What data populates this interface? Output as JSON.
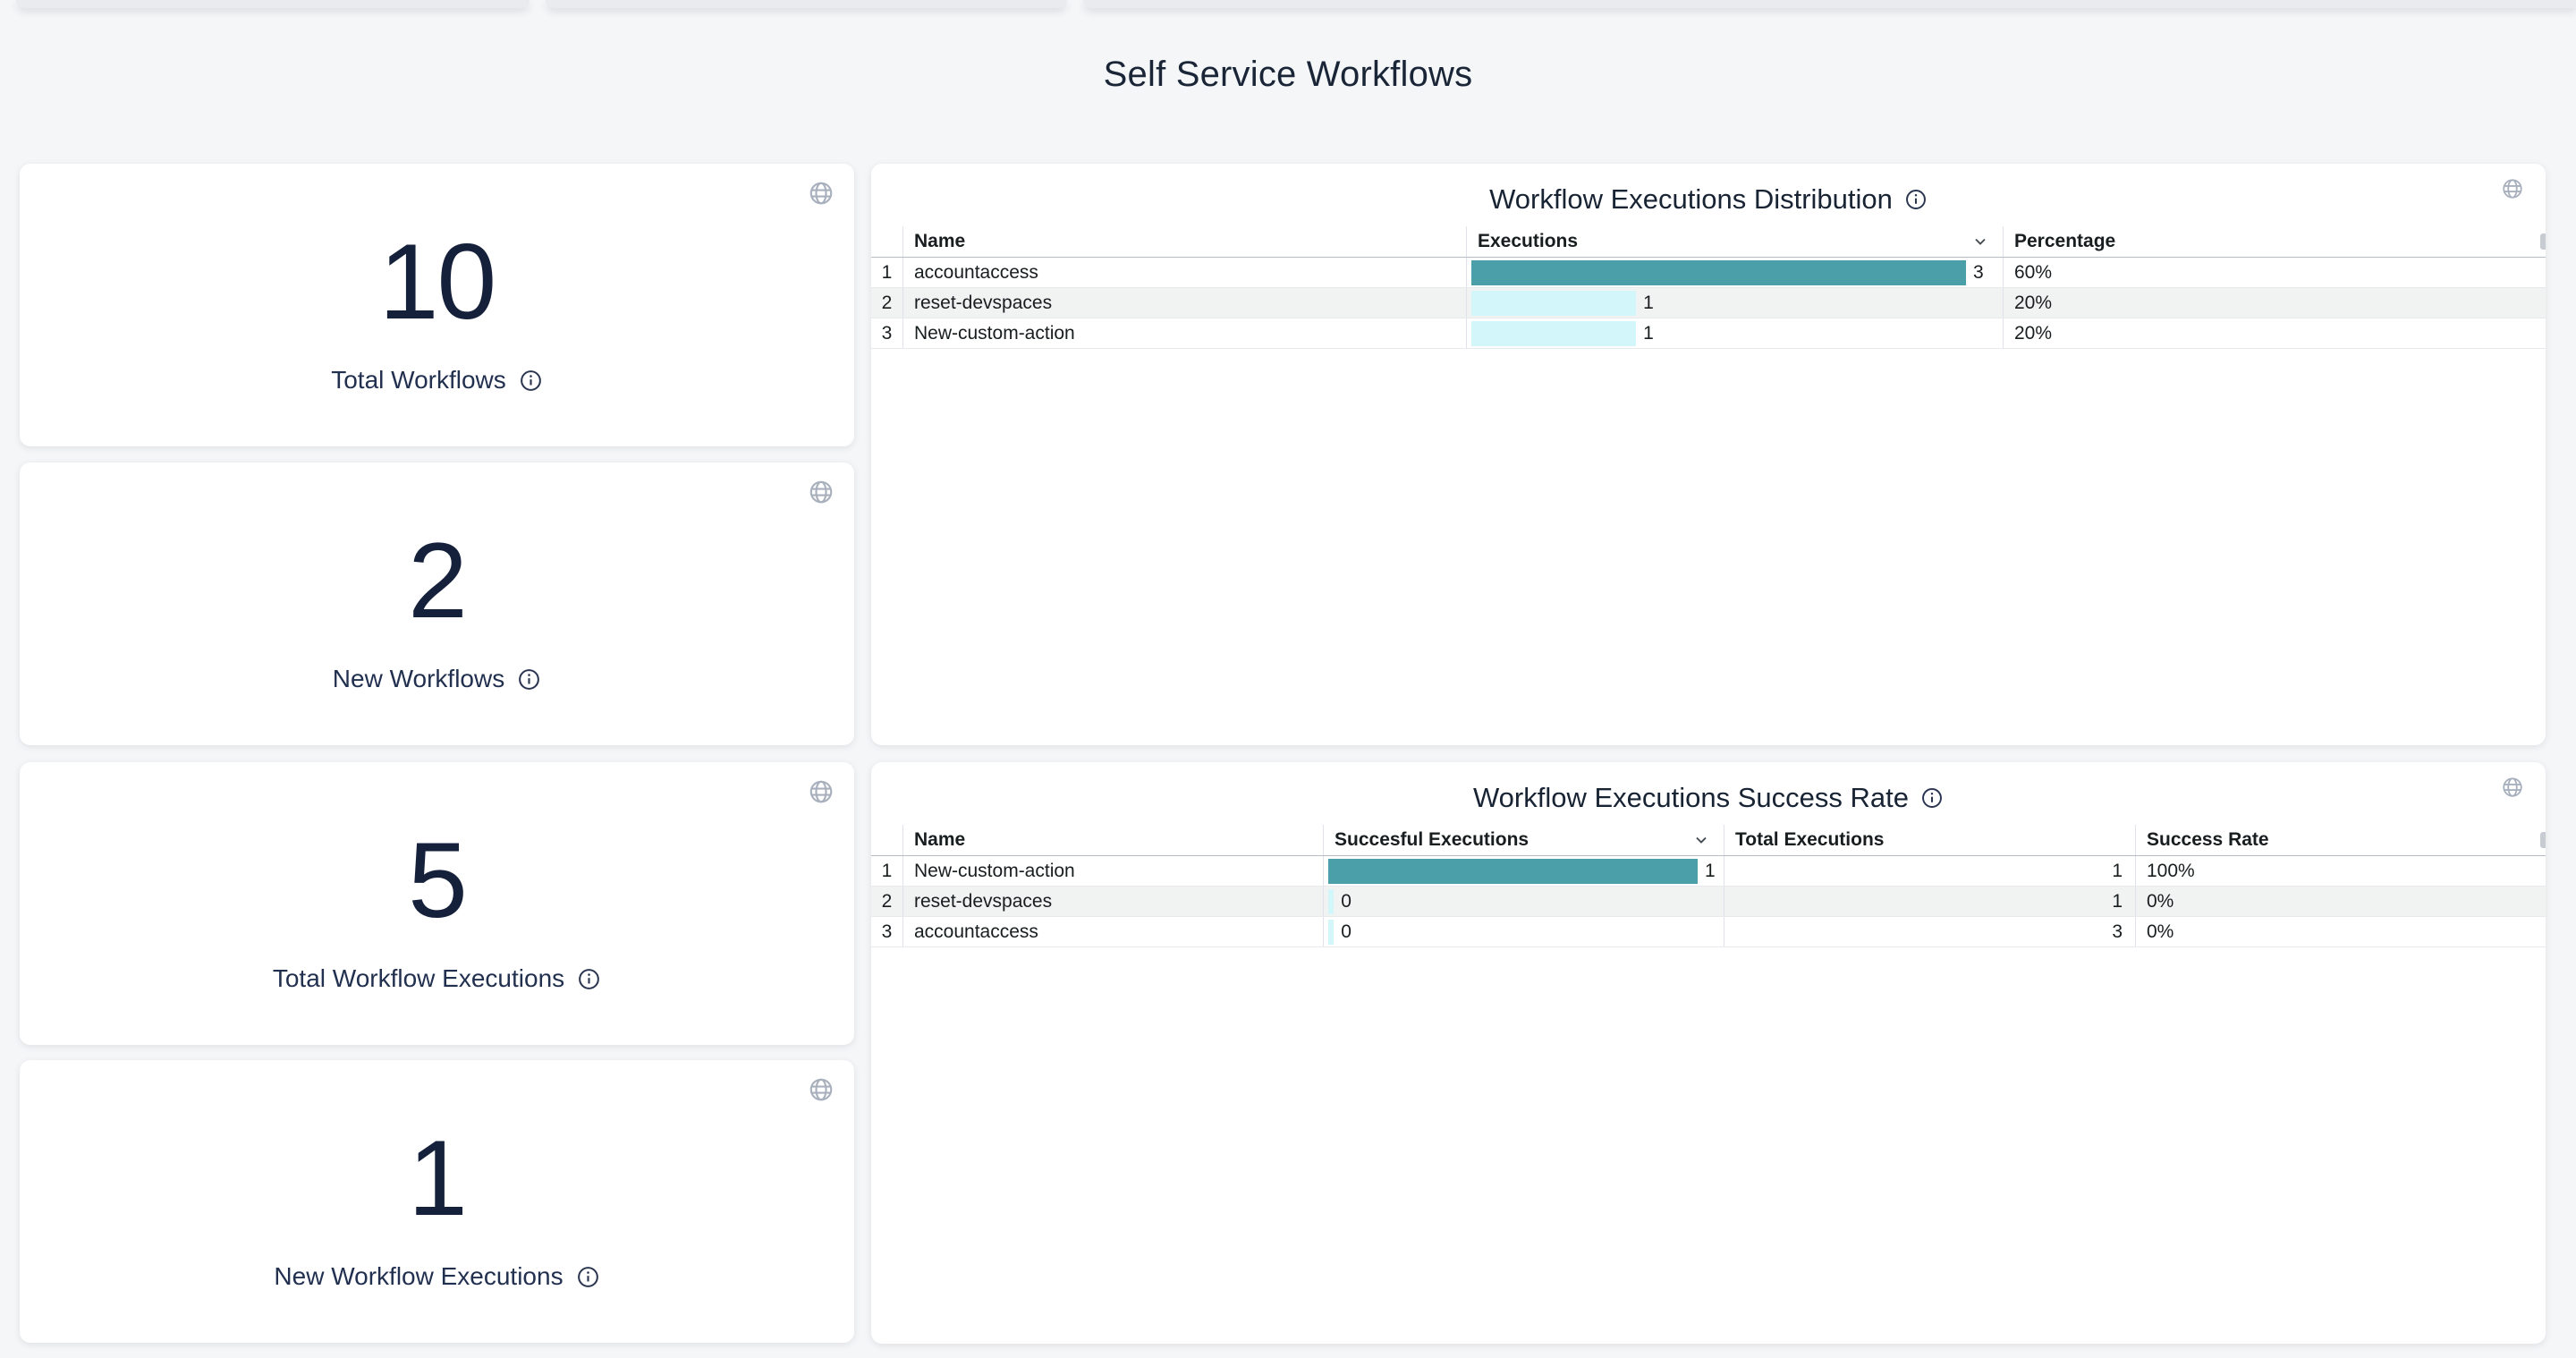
{
  "page": {
    "title": "Self Service Workflows"
  },
  "colors": {
    "bar_high": "#4a9fa8",
    "bar_low": "#d3f6fb",
    "page_background": "#f5f6f8",
    "title_text": "#1a2637",
    "globe_icon": "#a9b0bd"
  },
  "stat_cards": [
    {
      "value": "10",
      "label": "Total Workflows"
    },
    {
      "value": "2",
      "label": "New Workflows"
    },
    {
      "value": "5",
      "label": "Total Workflow Executions"
    },
    {
      "value": "1",
      "label": "New Workflow Executions"
    }
  ],
  "chart_data": [
    {
      "type": "table",
      "title": "Workflow Executions Distribution",
      "columns": {
        "name": "Name",
        "executions": "Executions",
        "percentage": "Percentage"
      },
      "sorted_by": "Executions",
      "sort_direction": "desc",
      "bar_column": "Executions",
      "bar_max": 3,
      "rows": [
        {
          "n": 1,
          "name": "accountaccess",
          "executions": 3,
          "bar_pct": 100,
          "percentage": "60%"
        },
        {
          "n": 2,
          "name": "reset-devspaces",
          "executions": 1,
          "bar_pct": 33.3,
          "percentage": "20%"
        },
        {
          "n": 3,
          "name": "New-custom-action",
          "executions": 1,
          "bar_pct": 33.3,
          "percentage": "20%"
        }
      ]
    },
    {
      "type": "table",
      "title": "Workflow Executions Success Rate",
      "columns": {
        "name": "Name",
        "successful": "Succesful Executions",
        "total": "Total Executions",
        "rate": "Success Rate"
      },
      "sorted_by": "Succesful Executions",
      "sort_direction": "desc",
      "bar_column": "Succesful Executions",
      "bar_max": 1,
      "rows": [
        {
          "n": 1,
          "name": "New-custom-action",
          "successful": 1,
          "bar_pct": 100,
          "total": 1,
          "rate": "100%"
        },
        {
          "n": 2,
          "name": "reset-devspaces",
          "successful": 0,
          "bar_pct": 1.5,
          "total": 1,
          "rate": "0%"
        },
        {
          "n": 3,
          "name": "accountaccess",
          "successful": 0,
          "bar_pct": 1.5,
          "total": 3,
          "rate": "0%"
        }
      ]
    }
  ]
}
